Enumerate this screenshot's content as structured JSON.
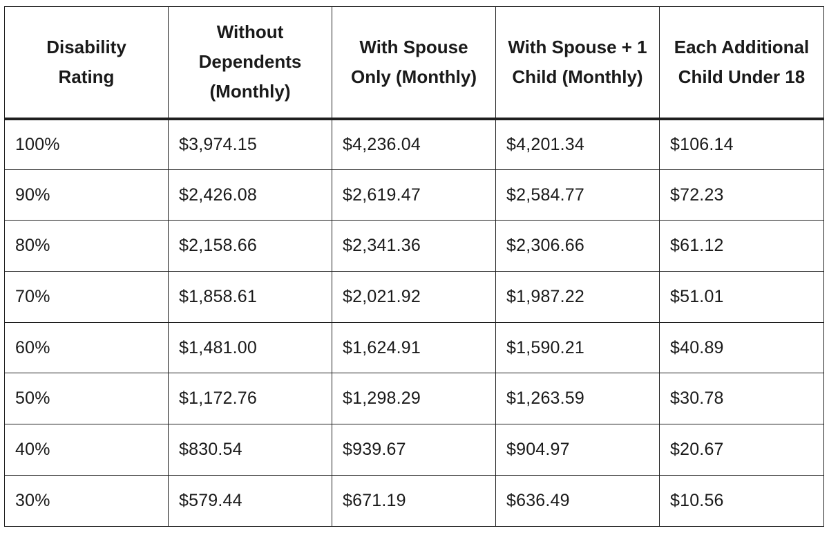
{
  "table": {
    "headers": [
      "Disability Rating",
      "Without Dependents (Monthly)",
      "With Spouse Only (Monthly)",
      "With Spouse + 1 Child (Monthly)",
      "Each Additional Child Under 18"
    ],
    "rows": [
      [
        "100%",
        "$3,974.15",
        "$4,236.04",
        "$4,201.34",
        "$106.14"
      ],
      [
        "90%",
        "$2,426.08",
        "$2,619.47",
        "$2,584.77",
        "$72.23"
      ],
      [
        "80%",
        "$2,158.66",
        "$2,341.36",
        "$2,306.66",
        "$61.12"
      ],
      [
        "70%",
        "$1,858.61",
        "$2,021.92",
        "$1,987.22",
        "$51.01"
      ],
      [
        "60%",
        "$1,481.00",
        "$1,624.91",
        "$1,590.21",
        "$40.89"
      ],
      [
        "50%",
        "$1,172.76",
        "$1,298.29",
        "$1,263.59",
        "$30.78"
      ],
      [
        "40%",
        "$830.54",
        "$939.67",
        "$904.97",
        "$20.67"
      ],
      [
        "30%",
        "$579.44",
        "$671.19",
        "$636.49",
        "$10.56"
      ]
    ]
  }
}
